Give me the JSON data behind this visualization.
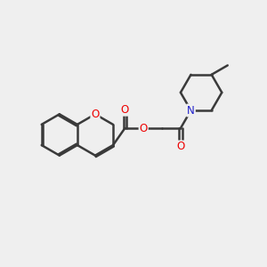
{
  "background_color": "#efefef",
  "bond_color": "#3a3a3a",
  "oxygen_color": "#ee0000",
  "nitrogen_color": "#2020cc",
  "line_width": 1.8,
  "dbo": 0.055,
  "figsize": [
    3.0,
    3.0
  ],
  "dpi": 100,
  "xlim": [
    0,
    10
  ],
  "ylim": [
    1,
    9
  ]
}
